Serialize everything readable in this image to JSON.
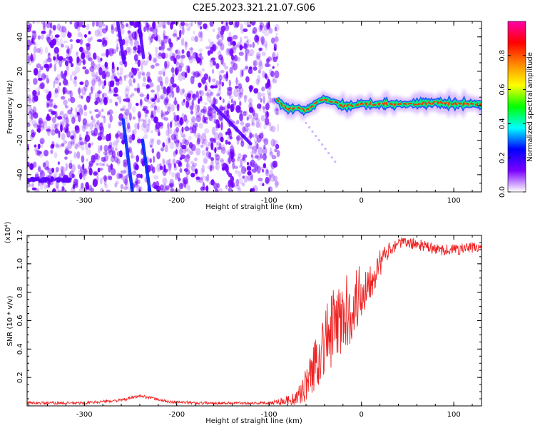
{
  "title": "C2E5.2023.321.21.07.G06",
  "chart_data": [
    {
      "type": "heatmap",
      "title": "C2E5.2023.321.21.07.G06",
      "xlabel": "Height of straight line (km)",
      "ylabel": "Frequency (Hz)",
      "xlim": [
        -362,
        130
      ],
      "ylim": [
        -50,
        49
      ],
      "xticks": [
        -300,
        -200,
        -100,
        0,
        100
      ],
      "xtick_labels": [
        "-300",
        "-200",
        "-100",
        "0",
        "100"
      ],
      "yticks": [
        -40,
        -20,
        0,
        20,
        40
      ],
      "ytick_labels": [
        "-40",
        "-20",
        "0",
        "20",
        "40"
      ],
      "colorbar": {
        "label": "Normalized spectral amplitude",
        "range": [
          0,
          1
        ],
        "ticks": [
          0.0,
          0.2,
          0.4,
          0.6,
          0.8
        ],
        "tick_labels": [
          "0.0",
          "0.2",
          "0.4",
          "0.6",
          "0.8"
        ],
        "colors": [
          "#ffffff",
          "#7a00ff",
          "#0000ff",
          "#00ffff",
          "#00ff00",
          "#ffff00",
          "#ff8800",
          "#ff0000",
          "#ff00aa"
        ]
      },
      "noise_region_x": [
        -362,
        -90
      ],
      "noise_color": "#7000ff",
      "streaks": [
        {
          "name": "streak-1",
          "x": [
            -264,
            -257
          ],
          "y": [
            49,
            25
          ],
          "color": "#5500ff"
        },
        {
          "name": "streak-2",
          "x": [
            -258,
            -248
          ],
          "y": [
            -8,
            -50
          ],
          "color": "#0022ff"
        },
        {
          "name": "streak-3",
          "x": [
            -241,
            -236
          ],
          "y": [
            49,
            28
          ],
          "color": "#5500ff"
        },
        {
          "name": "streak-4",
          "x": [
            -237,
            -229
          ],
          "y": [
            -20,
            -50
          ],
          "color": "#0022ff"
        },
        {
          "name": "streak-5",
          "x": [
            -160,
            -120
          ],
          "y": [
            0,
            -22
          ],
          "color": "#5500ff"
        }
      ],
      "tone": {
        "x": [
          -92,
          -85,
          -78,
          -70,
          -60,
          -50,
          -40,
          -30,
          -20,
          -10,
          0,
          20,
          40,
          60,
          80,
          100,
          120,
          130
        ],
        "y": [
          4,
          0,
          -2,
          -1,
          -3,
          1,
          4,
          2,
          0,
          0,
          1,
          1,
          1,
          1,
          2,
          1,
          1,
          1
        ],
        "color": "#ff3300"
      }
    },
    {
      "type": "line",
      "xlabel": "Height of straight line (km)",
      "ylabel": "SNR (10 * v/v)",
      "y_multiplier": "(x10⁴)",
      "xlim": [
        -362,
        130
      ],
      "ylim": [
        0,
        1.2
      ],
      "xticks": [
        -300,
        -200,
        -100,
        0,
        100
      ],
      "xtick_labels": [
        "-300",
        "-200",
        "-100",
        "0",
        "100"
      ],
      "yticks": [
        0.2,
        0.4,
        0.6,
        0.8,
        1.0,
        1.2
      ],
      "ytick_labels": [
        "0.2",
        "0.4",
        "0.6",
        "0.8",
        "1.0",
        "1.2"
      ],
      "series": [
        {
          "name": "SNR",
          "color": "#ee2222",
          "x": [
            -362,
            -300,
            -260,
            -240,
            -230,
            -210,
            -180,
            -100,
            -70,
            -60,
            -50,
            -40,
            -30,
            -20,
            -10,
            0,
            10,
            20,
            30,
            40,
            60,
            80,
            100,
            130
          ],
          "values": [
            0.02,
            0.02,
            0.04,
            0.07,
            0.06,
            0.03,
            0.02,
            0.02,
            0.05,
            0.15,
            0.3,
            0.45,
            0.55,
            0.62,
            0.7,
            0.8,
            0.9,
            1.0,
            1.1,
            1.15,
            1.14,
            1.1,
            1.1,
            1.12
          ],
          "noise": [
            0.01,
            0.01,
            0.01,
            0.01,
            0.01,
            0.01,
            0.01,
            0.01,
            0.05,
            0.12,
            0.2,
            0.25,
            0.28,
            0.28,
            0.25,
            0.22,
            0.15,
            0.1,
            0.05,
            0.04,
            0.04,
            0.04,
            0.04,
            0.04
          ]
        }
      ]
    }
  ]
}
